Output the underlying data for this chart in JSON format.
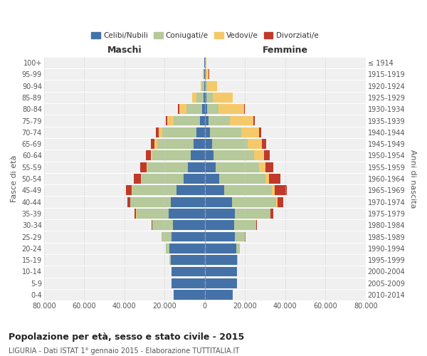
{
  "age_groups_bottom_to_top": [
    "0-4",
    "5-9",
    "10-14",
    "15-19",
    "20-24",
    "25-29",
    "30-34",
    "35-39",
    "40-44",
    "45-49",
    "50-54",
    "55-59",
    "60-64",
    "65-69",
    "70-74",
    "75-79",
    "80-84",
    "85-89",
    "90-94",
    "95-99",
    "100+"
  ],
  "birth_years_bottom_to_top": [
    "2010-2014",
    "2005-2009",
    "2000-2004",
    "1995-1999",
    "1990-1994",
    "1985-1989",
    "1980-1984",
    "1975-1979",
    "1970-1974",
    "1965-1969",
    "1960-1964",
    "1955-1959",
    "1950-1954",
    "1945-1949",
    "1940-1944",
    "1935-1939",
    "1930-1934",
    "1925-1929",
    "1920-1924",
    "1915-1919",
    "≤ 1914"
  ],
  "colors": {
    "celibi": "#4472a8",
    "coniugati": "#b5c99a",
    "vedovi": "#f5c96a",
    "divorziati": "#c0392b",
    "background": "#ffffff",
    "panel_bg": "#f0f0f0",
    "grid_x": "#cccccc",
    "grid_y": "#ffffff",
    "dashed_center": "#9999bb"
  },
  "maschi": {
    "celibi": [
      15500,
      16500,
      16500,
      17000,
      17500,
      16500,
      16000,
      18000,
      17000,
      14000,
      10500,
      8500,
      7000,
      5500,
      4000,
      2500,
      1500,
      700,
      400,
      250,
      150
    ],
    "coniugati": [
      20,
      50,
      100,
      500,
      2000,
      5000,
      10000,
      16000,
      20000,
      22000,
      21000,
      20000,
      19000,
      18000,
      17000,
      13000,
      7500,
      3500,
      1000,
      350,
      150
    ],
    "vedovi": [
      1,
      1,
      2,
      5,
      10,
      30,
      50,
      80,
      100,
      200,
      300,
      500,
      800,
      1500,
      2000,
      3000,
      3800,
      2000,
      700,
      250,
      80
    ],
    "divorziati": [
      1,
      2,
      3,
      10,
      30,
      100,
      300,
      800,
      1500,
      3000,
      3500,
      3000,
      2500,
      1800,
      1400,
      900,
      400,
      150,
      80,
      60,
      30
    ]
  },
  "femmine": {
    "celibi": [
      14000,
      16000,
      16000,
      16000,
      15500,
      15000,
      14500,
      15000,
      13500,
      9500,
      7000,
      5500,
      4500,
      3500,
      2500,
      1800,
      1200,
      900,
      600,
      300,
      200
    ],
    "coniugati": [
      15,
      40,
      100,
      500,
      2000,
      5000,
      11000,
      17500,
      22000,
      24000,
      23000,
      21500,
      20000,
      18000,
      15500,
      10500,
      5500,
      3000,
      600,
      200,
      80
    ],
    "vedovi": [
      1,
      1,
      3,
      10,
      30,
      80,
      150,
      300,
      600,
      1200,
      2000,
      3000,
      5000,
      7000,
      9000,
      12000,
      13000,
      10000,
      5000,
      1500,
      500
    ],
    "divorziati": [
      1,
      1,
      3,
      10,
      40,
      150,
      450,
      1300,
      2800,
      6000,
      5500,
      4000,
      2800,
      2000,
      1200,
      700,
      350,
      150,
      80,
      40,
      20
    ]
  },
  "xlim": 80000,
  "title": "Popolazione per età, sesso e stato civile - 2015",
  "subtitle": "LIGURIA - Dati ISTAT 1° gennaio 2015 - Elaborazione TUTTITALIA.IT",
  "xlabel_left": "Maschi",
  "xlabel_right": "Femmine",
  "ylabel_left": "Fasce di età",
  "ylabel_right": "Anni di nascita"
}
